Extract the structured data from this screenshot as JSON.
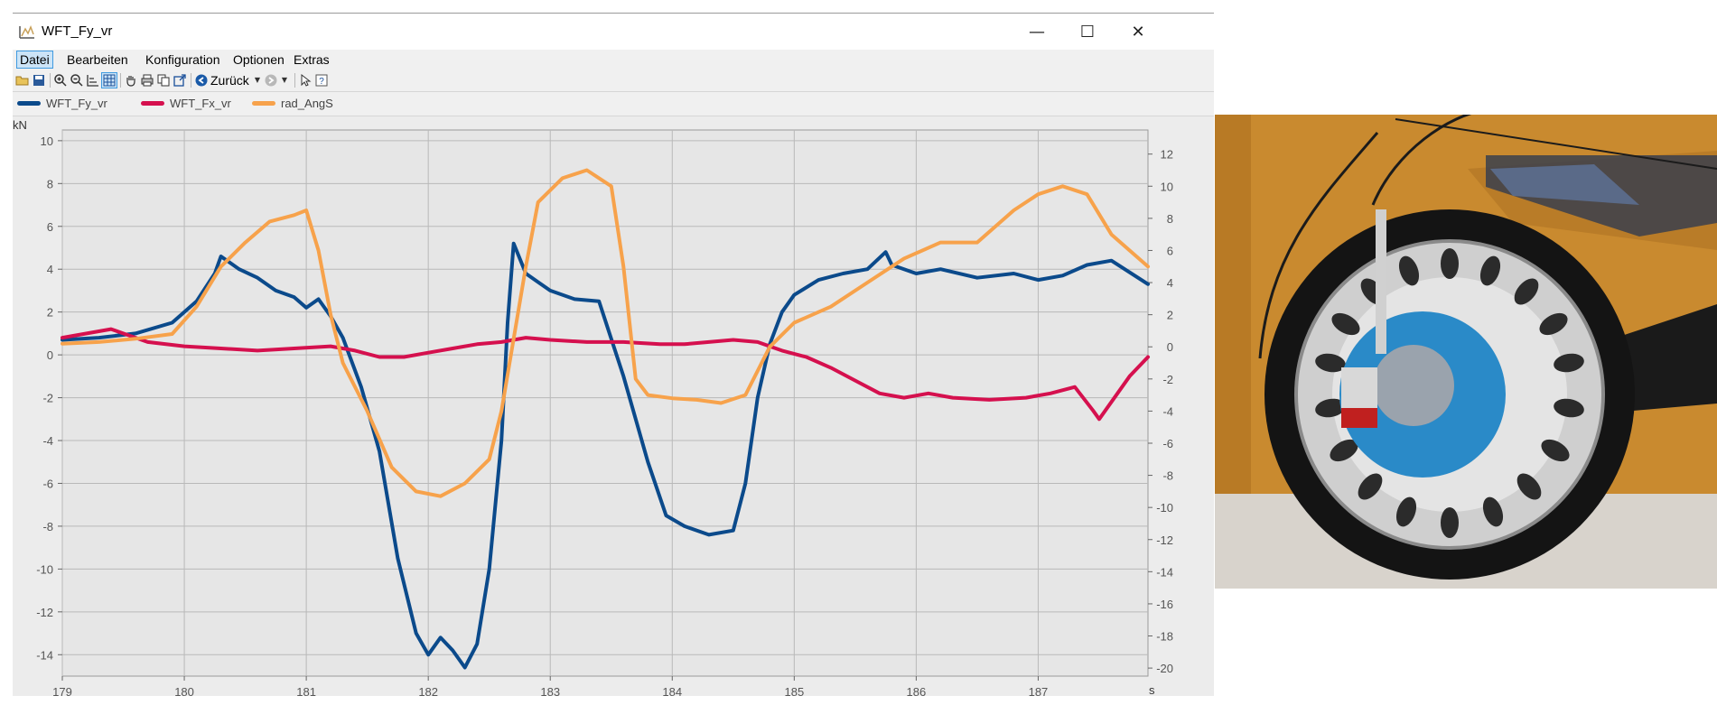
{
  "window": {
    "title": "WFT_Fy_vr",
    "minimize_glyph": "—",
    "maximize_glyph": "☐",
    "close_glyph": "✕"
  },
  "menubar": {
    "items": [
      "Datei",
      "Bearbeiten",
      "Konfiguration",
      "Optionen",
      "Extras"
    ],
    "selected": "Datei"
  },
  "toolbar": {
    "back_label": "Zurück",
    "icons": [
      "open-icon",
      "save-icon",
      "zoom-in-icon",
      "zoom-out-icon",
      "axis-icon",
      "grid-icon",
      "hand-icon",
      "print-icon",
      "copy-icon",
      "export-icon",
      "back-icon",
      "forward-icon",
      "pointer-icon",
      "help-icon"
    ]
  },
  "legend": [
    {
      "name": "WFT_Fy_vr",
      "color": "#0b4a8b"
    },
    {
      "name": "WFT_Fx_vr",
      "color": "#d5104e"
    },
    {
      "name": "rad_AngS",
      "color": "#f7a24b"
    }
  ],
  "chart_data": {
    "type": "line",
    "y_unit_label": "kN",
    "x_unit_label": "s",
    "xlim": [
      179,
      187.9
    ],
    "ylim_left": [
      -15,
      10.5
    ],
    "ylim_right": [
      -20.5,
      13.5
    ],
    "x_ticks": [
      179,
      180,
      181,
      182,
      183,
      184,
      185,
      186,
      187
    ],
    "y_ticks_left": [
      10,
      8,
      6,
      4,
      2,
      0,
      -2,
      -4,
      -6,
      -8,
      -10,
      -12,
      -14
    ],
    "y_ticks_right": [
      12,
      10,
      8,
      6,
      4,
      2,
      0,
      -2,
      -4,
      -6,
      -8,
      -10,
      -12,
      -14,
      -16,
      -18,
      -20
    ],
    "grid": true,
    "legend_position": "top-left",
    "series": [
      {
        "name": "WFT_Fy_vr",
        "color": "#0b4a8b",
        "axis": "left",
        "x": [
          179.0,
          179.3,
          179.6,
          179.9,
          180.1,
          180.25,
          180.3,
          180.45,
          180.6,
          180.75,
          180.9,
          181.0,
          181.1,
          181.2,
          181.3,
          181.45,
          181.6,
          181.75,
          181.9,
          182.0,
          182.1,
          182.2,
          182.3,
          182.4,
          182.5,
          182.6,
          182.65,
          182.7,
          182.8,
          182.9,
          183.0,
          183.2,
          183.4,
          183.6,
          183.8,
          183.95,
          184.1,
          184.3,
          184.5,
          184.6,
          184.7,
          184.8,
          184.9,
          185.0,
          185.2,
          185.4,
          185.6,
          185.75,
          185.8,
          186.0,
          186.2,
          186.5,
          186.8,
          187.0,
          187.2,
          187.4,
          187.6,
          187.9
        ],
        "y": [
          0.7,
          0.8,
          1.0,
          1.5,
          2.5,
          3.8,
          4.6,
          4.0,
          3.6,
          3.0,
          2.7,
          2.2,
          2.6,
          1.8,
          0.8,
          -1.5,
          -4.5,
          -9.5,
          -13.0,
          -14.0,
          -13.2,
          -13.8,
          -14.6,
          -13.5,
          -10.0,
          -4.0,
          1.5,
          5.2,
          3.8,
          3.4,
          3.0,
          2.6,
          2.5,
          -1.0,
          -5.0,
          -7.5,
          -8.0,
          -8.4,
          -8.2,
          -6.0,
          -2.0,
          0.5,
          2.0,
          2.8,
          3.5,
          3.8,
          4.0,
          4.8,
          4.2,
          3.8,
          4.0,
          3.6,
          3.8,
          3.5,
          3.7,
          4.2,
          4.4,
          3.3
        ]
      },
      {
        "name": "WFT_Fx_vr",
        "color": "#d5104e",
        "axis": "left",
        "x": [
          179.0,
          179.2,
          179.4,
          179.5,
          179.7,
          180.0,
          180.3,
          180.6,
          180.9,
          181.2,
          181.4,
          181.6,
          181.8,
          182.0,
          182.2,
          182.4,
          182.6,
          182.8,
          183.0,
          183.3,
          183.6,
          183.9,
          184.1,
          184.3,
          184.5,
          184.7,
          184.9,
          185.1,
          185.3,
          185.5,
          185.7,
          185.9,
          186.1,
          186.3,
          186.6,
          186.9,
          187.1,
          187.3,
          187.45,
          187.5,
          187.6,
          187.75,
          187.9
        ],
        "y": [
          0.8,
          1.0,
          1.2,
          1.0,
          0.6,
          0.4,
          0.3,
          0.2,
          0.3,
          0.4,
          0.2,
          -0.1,
          -0.1,
          0.1,
          0.3,
          0.5,
          0.6,
          0.8,
          0.7,
          0.6,
          0.6,
          0.5,
          0.5,
          0.6,
          0.7,
          0.6,
          0.2,
          -0.1,
          -0.6,
          -1.2,
          -1.8,
          -2.0,
          -1.8,
          -2.0,
          -2.1,
          -2.0,
          -1.8,
          -1.5,
          -2.6,
          -3.0,
          -2.2,
          -1.0,
          -0.1
        ]
      },
      {
        "name": "rad_AngS",
        "color": "#f7a24b",
        "axis": "right",
        "x": [
          179.0,
          179.3,
          179.6,
          179.9,
          180.1,
          180.3,
          180.5,
          180.7,
          180.9,
          181.0,
          181.1,
          181.2,
          181.3,
          181.5,
          181.7,
          181.9,
          182.1,
          182.3,
          182.5,
          182.6,
          182.7,
          182.8,
          182.9,
          183.1,
          183.3,
          183.5,
          183.6,
          183.7,
          183.8,
          184.0,
          184.2,
          184.4,
          184.6,
          184.8,
          185.0,
          185.3,
          185.6,
          185.9,
          186.2,
          186.5,
          186.8,
          187.0,
          187.2,
          187.4,
          187.6,
          187.9
        ],
        "y": [
          0.2,
          0.3,
          0.5,
          0.8,
          2.5,
          5.0,
          6.5,
          7.8,
          8.2,
          8.5,
          6.0,
          2.0,
          -1.0,
          -4.0,
          -7.5,
          -9.0,
          -9.3,
          -8.5,
          -7.0,
          -4.0,
          0.5,
          5.0,
          9.0,
          10.5,
          11.0,
          10.0,
          5.0,
          -2.0,
          -3.0,
          -3.2,
          -3.3,
          -3.5,
          -3.0,
          0.0,
          1.5,
          2.5,
          4.0,
          5.5,
          6.5,
          6.5,
          8.5,
          9.5,
          10.0,
          9.5,
          7.0,
          5.0
        ]
      }
    ]
  }
}
